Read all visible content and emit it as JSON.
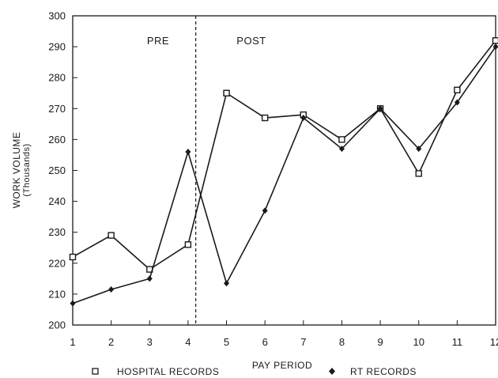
{
  "chart_data": {
    "type": "line",
    "title": "",
    "xlabel": "PAY PERIOD",
    "ylabel": "WORK VOLUME",
    "ylabel_unit": "(Thousands)",
    "x": [
      1,
      2,
      3,
      4,
      5,
      6,
      7,
      8,
      9,
      10,
      11,
      12
    ],
    "xlim": [
      1,
      12
    ],
    "ylim": [
      200,
      300
    ],
    "yticks": [
      200,
      210,
      220,
      230,
      240,
      250,
      260,
      270,
      280,
      290,
      300
    ],
    "xticks": [
      1,
      2,
      3,
      4,
      5,
      6,
      7,
      8,
      9,
      10,
      11,
      12
    ],
    "grid": false,
    "legend_position": "bottom",
    "ytick_labels_as_printed": [
      "200",
      "210",
      "220",
      "230",
      "240",
      "250",
      "260",
      "270",
      "280",
      "290",
      "300"
    ],
    "series": [
      {
        "name": "HOSPITAL RECORDS",
        "marker": "square",
        "values": [
          222,
          229,
          218,
          226,
          275,
          267,
          268,
          260,
          270,
          249,
          276,
          292
        ]
      },
      {
        "name": "RT RECORDS",
        "marker": "diamond",
        "values": [
          207,
          211.5,
          215,
          256,
          213.5,
          237,
          267,
          257,
          270,
          257,
          272,
          290
        ]
      }
    ],
    "annotations": {
      "divider_x": 4.2,
      "pre_label": "PRE",
      "post_label": "POST"
    }
  }
}
